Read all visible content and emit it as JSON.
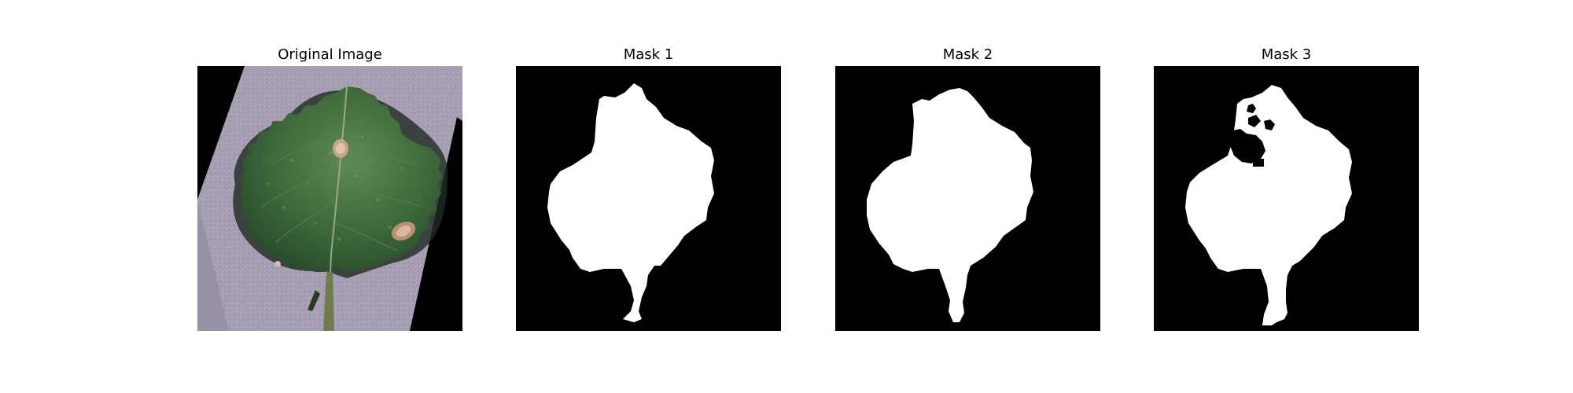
{
  "figure": {
    "panels": [
      {
        "title": "Original Image"
      },
      {
        "title": "Mask 1"
      },
      {
        "title": "Mask 2"
      },
      {
        "title": "Mask 3"
      }
    ]
  },
  "colors": {
    "mask_background": "#000000",
    "mask_foreground": "#ffffff",
    "leaf": "#3f6b3c",
    "paper": "#a49bb2"
  }
}
